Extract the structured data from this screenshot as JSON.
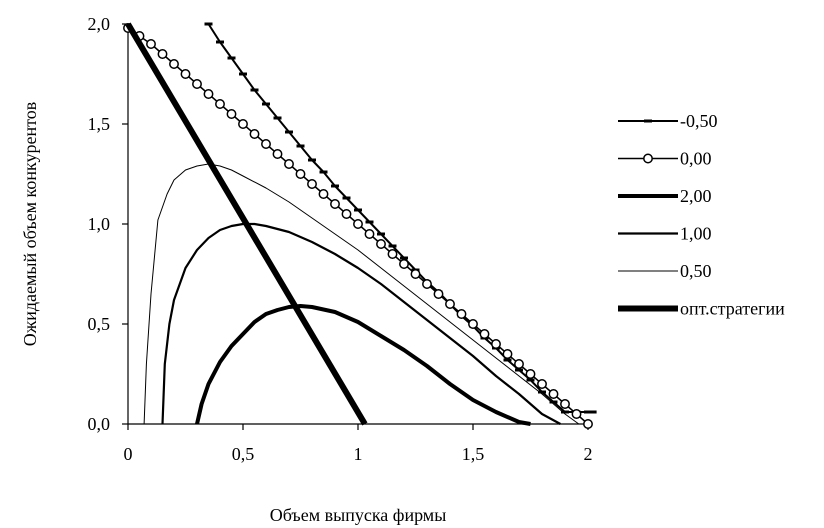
{
  "chart_data": {
    "type": "line",
    "xlabel": "Объем выпуска фирмы",
    "ylabel": "Ожидаемый объем конкурентов",
    "xlim": [
      0,
      2
    ],
    "ylim": [
      0,
      2
    ],
    "x_ticks": [
      "0",
      "0,5",
      "1",
      "1,5",
      "2"
    ],
    "y_ticks": [
      "0,0",
      "0,5",
      "1,0",
      "1,5",
      "2,0"
    ],
    "grid": false,
    "legend_position": "right",
    "series": [
      {
        "name": "-0,50",
        "style": "dash-markers",
        "x": [
          0.35,
          0.4,
          0.45,
          0.5,
          0.55,
          0.6,
          0.65,
          0.7,
          0.75,
          0.8,
          0.85,
          0.9,
          0.95,
          1.0,
          1.05,
          1.1,
          1.15,
          1.2,
          1.25,
          1.3,
          1.35,
          1.4,
          1.45,
          1.5,
          1.55,
          1.6,
          1.65,
          1.7,
          1.75,
          1.8,
          1.85,
          1.9,
          1.95,
          2.0,
          2.02
        ],
        "y": [
          2.0,
          1.91,
          1.83,
          1.75,
          1.67,
          1.6,
          1.53,
          1.46,
          1.39,
          1.32,
          1.26,
          1.19,
          1.13,
          1.07,
          1.01,
          0.95,
          0.89,
          0.83,
          0.77,
          0.71,
          0.66,
          0.6,
          0.54,
          0.49,
          0.43,
          0.38,
          0.32,
          0.27,
          0.22,
          0.16,
          0.11,
          0.06,
          0.06,
          0.06,
          0.06
        ]
      },
      {
        "name": "0,00",
        "style": "circle-markers",
        "x": [
          0.0,
          0.05,
          0.1,
          0.15,
          0.2,
          0.25,
          0.3,
          0.35,
          0.4,
          0.45,
          0.5,
          0.55,
          0.6,
          0.65,
          0.7,
          0.75,
          0.8,
          0.85,
          0.9,
          0.95,
          1.0,
          1.05,
          1.1,
          1.15,
          1.2,
          1.25,
          1.3,
          1.35,
          1.4,
          1.45,
          1.5,
          1.55,
          1.6,
          1.65,
          1.7,
          1.75,
          1.8,
          1.85,
          1.9,
          1.95,
          2.0
        ],
        "y": [
          1.98,
          1.94,
          1.9,
          1.85,
          1.8,
          1.75,
          1.7,
          1.65,
          1.6,
          1.55,
          1.5,
          1.45,
          1.4,
          1.35,
          1.3,
          1.25,
          1.2,
          1.15,
          1.1,
          1.05,
          1.0,
          0.95,
          0.9,
          0.85,
          0.8,
          0.75,
          0.7,
          0.65,
          0.6,
          0.55,
          0.5,
          0.45,
          0.4,
          0.35,
          0.3,
          0.25,
          0.2,
          0.15,
          0.1,
          0.05,
          0.0
        ]
      },
      {
        "name": "2,00",
        "style": "thick",
        "x": [
          0.3,
          0.32,
          0.35,
          0.4,
          0.45,
          0.5,
          0.55,
          0.6,
          0.65,
          0.7,
          0.75,
          0.8,
          0.9,
          1.0,
          1.1,
          1.2,
          1.3,
          1.4,
          1.5,
          1.6,
          1.7,
          1.75
        ],
        "y": [
          0.0,
          0.1,
          0.2,
          0.31,
          0.39,
          0.45,
          0.51,
          0.55,
          0.57,
          0.585,
          0.59,
          0.585,
          0.56,
          0.51,
          0.44,
          0.37,
          0.29,
          0.2,
          0.12,
          0.06,
          0.01,
          0.0
        ]
      },
      {
        "name": "1,00",
        "style": "medium",
        "x": [
          0.15,
          0.16,
          0.18,
          0.2,
          0.25,
          0.3,
          0.35,
          0.4,
          0.45,
          0.5,
          0.55,
          0.6,
          0.7,
          0.8,
          0.9,
          1.0,
          1.1,
          1.2,
          1.3,
          1.4,
          1.5,
          1.6,
          1.7,
          1.8,
          1.88
        ],
        "y": [
          0.0,
          0.3,
          0.5,
          0.62,
          0.78,
          0.87,
          0.93,
          0.97,
          0.99,
          1.0,
          1.0,
          0.99,
          0.96,
          0.91,
          0.85,
          0.78,
          0.7,
          0.61,
          0.52,
          0.43,
          0.34,
          0.24,
          0.15,
          0.05,
          0.0
        ]
      },
      {
        "name": "0,50",
        "style": "thin",
        "x": [
          0.07,
          0.08,
          0.1,
          0.13,
          0.17,
          0.2,
          0.25,
          0.3,
          0.35,
          0.4,
          0.45,
          0.5,
          0.6,
          0.7,
          0.8,
          0.9,
          1.0,
          1.1,
          1.2,
          1.3,
          1.4,
          1.5,
          1.6,
          1.7,
          1.8,
          1.9,
          1.96
        ],
        "y": [
          0.0,
          0.3,
          0.65,
          1.02,
          1.15,
          1.22,
          1.27,
          1.29,
          1.3,
          1.29,
          1.27,
          1.24,
          1.18,
          1.11,
          1.03,
          0.95,
          0.87,
          0.78,
          0.69,
          0.6,
          0.51,
          0.42,
          0.33,
          0.24,
          0.15,
          0.05,
          0.0
        ]
      },
      {
        "name": "опт.стратегии",
        "style": "extra-thick",
        "x": [
          0.0,
          1.03
        ],
        "y": [
          2.0,
          0.0
        ]
      }
    ]
  }
}
